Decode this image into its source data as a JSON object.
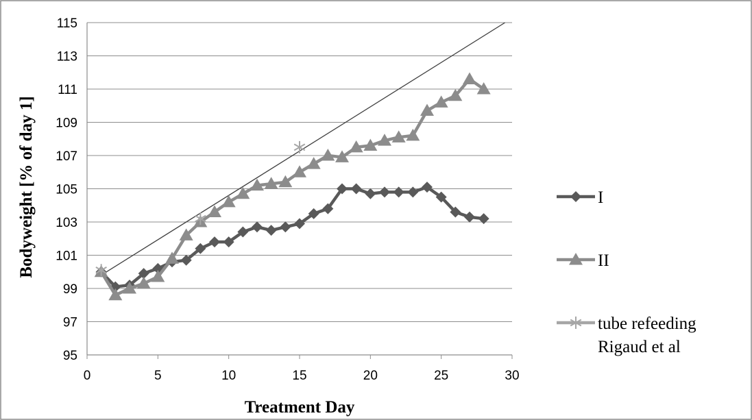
{
  "chart_data": {
    "type": "line",
    "title": "",
    "xlabel": "Treatment Day",
    "ylabel": "Bodyweight [% of day 1]",
    "xlim": [
      0,
      30
    ],
    "ylim": [
      95,
      115
    ],
    "xticks": [
      0,
      5,
      10,
      15,
      20,
      25,
      30
    ],
    "yticks": [
      95,
      97,
      99,
      101,
      103,
      105,
      107,
      109,
      111,
      113,
      115
    ],
    "grid": "horizontal",
    "legend_position": "right",
    "colors": {
      "series_I": "#595959",
      "series_II": "#8c8c8c",
      "series_tube": "#a6a6a6",
      "trendline": "#404040",
      "grid": "#8c8c8c"
    },
    "series": [
      {
        "name": "I",
        "marker": "diamond",
        "x": [
          1,
          2,
          3,
          4,
          5,
          6,
          7,
          8,
          9,
          10,
          11,
          12,
          13,
          14,
          15,
          16,
          17,
          18,
          19,
          20,
          21,
          22,
          23,
          24,
          25,
          26,
          27,
          28
        ],
        "values": [
          100.0,
          99.1,
          99.2,
          99.9,
          100.2,
          100.6,
          100.7,
          101.4,
          101.8,
          101.8,
          102.4,
          102.7,
          102.5,
          102.7,
          102.9,
          103.5,
          103.8,
          105.0,
          105.0,
          104.7,
          104.8,
          104.8,
          104.8,
          105.1,
          104.5,
          103.6,
          103.3,
          103.2
        ]
      },
      {
        "name": "II",
        "marker": "triangle",
        "x": [
          1,
          2,
          3,
          4,
          5,
          6,
          7,
          8,
          9,
          10,
          11,
          12,
          13,
          14,
          15,
          16,
          17,
          18,
          19,
          20,
          21,
          22,
          23,
          24,
          25,
          26,
          27,
          28
        ],
        "values": [
          100.0,
          98.6,
          99.0,
          99.3,
          99.7,
          100.8,
          102.2,
          103.0,
          103.6,
          104.2,
          104.7,
          105.2,
          105.3,
          105.4,
          106.0,
          106.5,
          107.0,
          106.9,
          107.5,
          107.6,
          107.9,
          108.1,
          108.2,
          109.7,
          110.2,
          110.6,
          111.6,
          111.0
        ]
      },
      {
        "name": "tube refeeding Rigaud et al",
        "marker": "star",
        "x": [
          1,
          8,
          15
        ],
        "values": [
          100.1,
          103.2,
          107.5
        ]
      }
    ],
    "annotations": [
      {
        "type": "trendline",
        "x": [
          1,
          29.5
        ],
        "y": [
          99.8,
          115
        ]
      }
    ]
  }
}
